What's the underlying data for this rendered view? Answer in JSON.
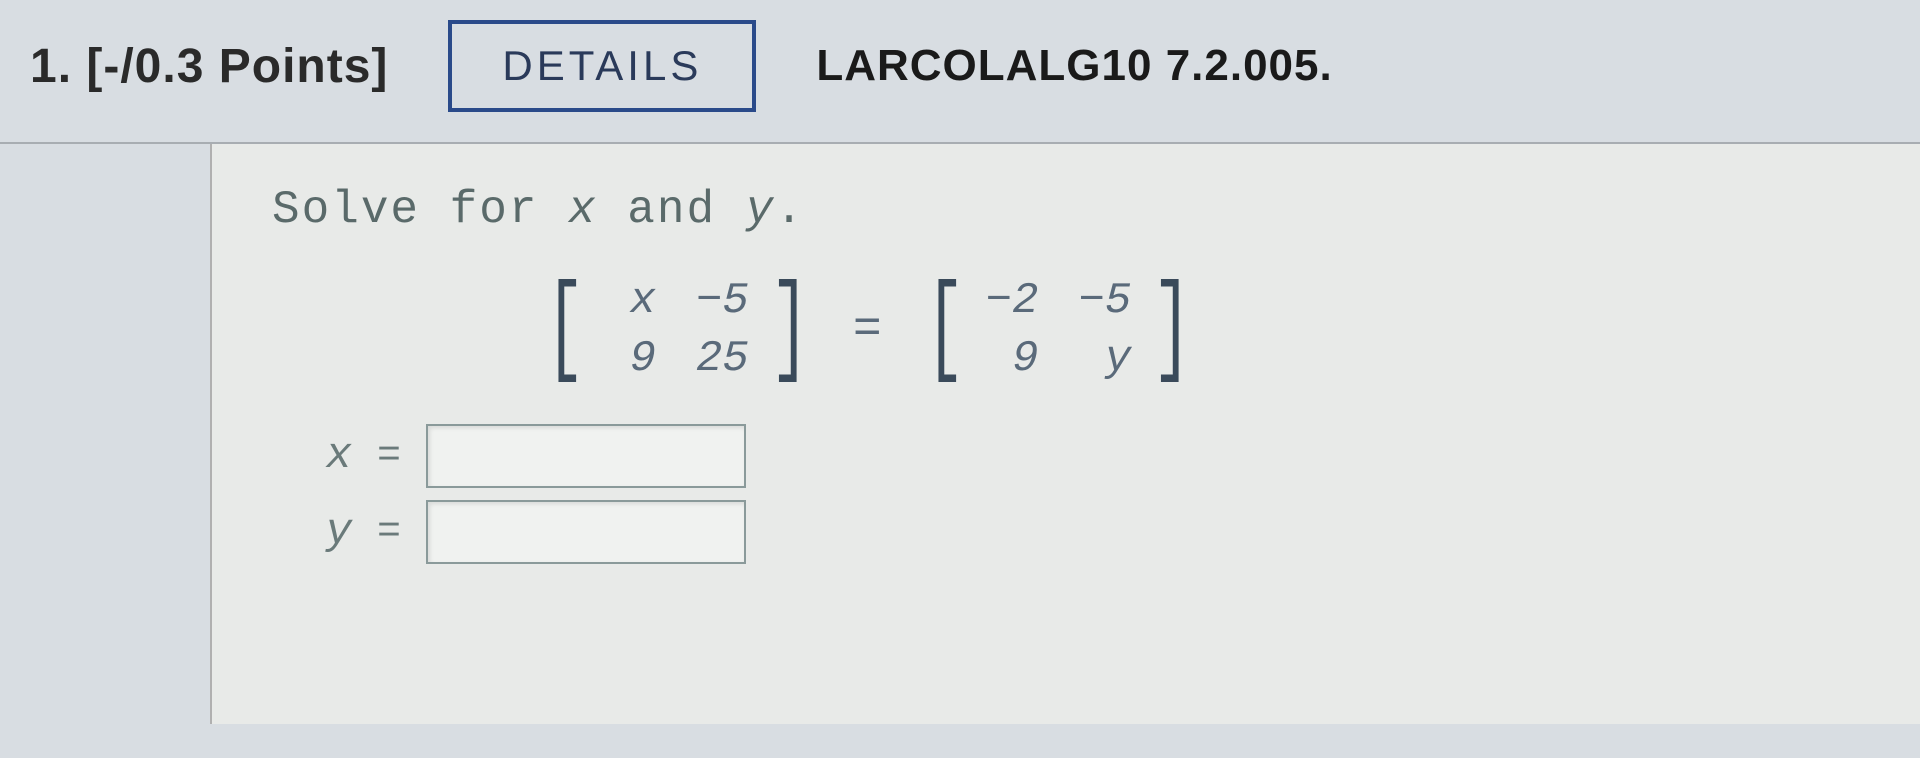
{
  "header": {
    "question_number": "1.",
    "points_label": "[-/0.3 Points]",
    "details_button": "DETAILS",
    "source_reference": "LARCOLALG10 7.2.005."
  },
  "problem": {
    "instruction_prefix": "Solve for ",
    "var1": "x",
    "instruction_mid": " and ",
    "var2": "y",
    "instruction_suffix": ".",
    "left_matrix": {
      "r1c1": "x",
      "r1c2": "−5",
      "r2c1": "9",
      "r2c2": "25"
    },
    "equals": "=",
    "right_matrix": {
      "r1c1": "−2",
      "r1c2": "−5",
      "r2c1": "9",
      "r2c2": "y"
    }
  },
  "answers": {
    "x_label": "x",
    "x_equals": "=",
    "x_value": "",
    "y_label": "y",
    "y_equals": "=",
    "y_value": ""
  },
  "styling": {
    "header_bg": "#d8dde2",
    "content_bg": "#e8eae8",
    "button_border": "#2a4a8a",
    "text_primary": "#2a2a2a",
    "text_math": "#5a6a7a",
    "input_border": "#8a9a9a"
  }
}
